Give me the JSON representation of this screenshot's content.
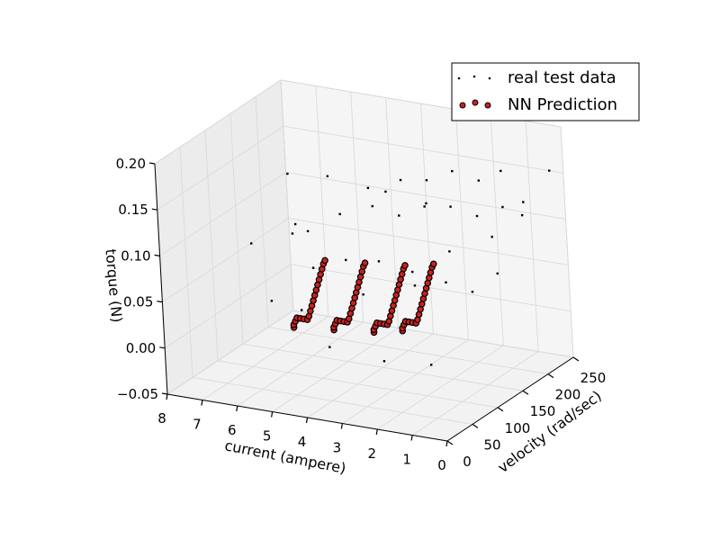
{
  "chart_data": {
    "type": "scatter",
    "projection": "3d",
    "title": "",
    "xlabel": "current (ampere)",
    "ylabel": "velocity (rad/sec)",
    "zlabel": "torque (N)",
    "xlim": [
      0,
      8
    ],
    "ylim": [
      0,
      250
    ],
    "zlim": [
      -0.05,
      0.2
    ],
    "x_ticks": [
      "8",
      "7",
      "6",
      "5",
      "4",
      "3",
      "2",
      "1",
      "0"
    ],
    "y_ticks": [
      "0",
      "50",
      "100",
      "150",
      "200",
      "250"
    ],
    "z_ticks": [
      "0.20",
      "0.15",
      "0.10",
      "0.05",
      "0.00",
      "−0.05"
    ],
    "grid": true,
    "legend_position": "top-right",
    "series": [
      {
        "name": "real test data",
        "color": "#000000",
        "marker": "point",
        "points": [
          [
            6.2,
            90,
            0.03
          ],
          [
            5.2,
            80,
            0.03
          ],
          [
            4.0,
            120,
            0.04
          ],
          [
            2.8,
            140,
            0.05
          ],
          [
            2.2,
            170,
            0.08
          ],
          [
            1.4,
            200,
            0.09
          ],
          [
            0.9,
            230,
            0.12
          ],
          [
            0.4,
            250,
            0.15
          ],
          [
            7.0,
            110,
            0.08
          ],
          [
            6.0,
            130,
            0.1
          ],
          [
            5.0,
            150,
            0.11
          ],
          [
            4.2,
            160,
            0.12
          ],
          [
            3.6,
            170,
            0.11
          ],
          [
            3.0,
            180,
            0.12
          ],
          [
            2.4,
            190,
            0.12
          ],
          [
            1.8,
            200,
            0.11
          ],
          [
            1.2,
            210,
            0.12
          ],
          [
            0.8,
            220,
            0.11
          ],
          [
            6.6,
            160,
            0.14
          ],
          [
            5.6,
            170,
            0.14
          ],
          [
            4.6,
            180,
            0.13
          ],
          [
            3.8,
            190,
            0.14
          ],
          [
            3.2,
            200,
            0.14
          ],
          [
            2.6,
            210,
            0.15
          ],
          [
            2.0,
            220,
            0.14
          ],
          [
            1.5,
            230,
            0.15
          ],
          [
            5.4,
            120,
            0.06
          ],
          [
            4.6,
            130,
            0.07
          ],
          [
            3.8,
            140,
            0.07
          ],
          [
            3.0,
            150,
            0.06
          ],
          [
            2.2,
            160,
            0.05
          ],
          [
            1.6,
            170,
            0.04
          ],
          [
            4.6,
            90,
            -0.01
          ],
          [
            3.2,
            100,
            -0.02
          ],
          [
            2.0,
            110,
            -0.02
          ],
          [
            6.4,
            150,
            0.08
          ],
          [
            5.8,
            140,
            0.09
          ],
          [
            1.0,
            180,
            0.06
          ],
          [
            4.4,
            200,
            0.12
          ],
          [
            3.4,
            210,
            0.11
          ]
        ]
      },
      {
        "name": "NN Prediction",
        "color": "#cc2020",
        "marker": "circle",
        "points": [
          [
            5.6,
            90,
            0.005
          ],
          [
            5.6,
            90,
            0.008
          ],
          [
            5.55,
            90,
            0.012
          ],
          [
            5.5,
            90,
            0.016
          ],
          [
            5.4,
            90,
            0.016
          ],
          [
            5.3,
            90,
            0.016
          ],
          [
            5.2,
            90,
            0.016
          ],
          [
            5.15,
            90,
            0.02
          ],
          [
            5.1,
            90,
            0.026
          ],
          [
            5.05,
            90,
            0.032
          ],
          [
            5.0,
            90,
            0.038
          ],
          [
            4.95,
            90,
            0.044
          ],
          [
            4.9,
            90,
            0.05
          ],
          [
            4.85,
            90,
            0.056
          ],
          [
            4.8,
            90,
            0.062
          ],
          [
            4.75,
            90,
            0.068
          ],
          [
            4.7,
            90,
            0.074
          ],
          [
            4.65,
            90,
            0.08
          ],
          [
            4.6,
            90,
            0.084
          ],
          [
            4.6,
            100,
            0.005
          ],
          [
            4.6,
            100,
            0.008
          ],
          [
            4.55,
            100,
            0.012
          ],
          [
            4.5,
            100,
            0.016
          ],
          [
            4.4,
            100,
            0.016
          ],
          [
            4.3,
            100,
            0.016
          ],
          [
            4.2,
            100,
            0.016
          ],
          [
            4.15,
            100,
            0.02
          ],
          [
            4.1,
            100,
            0.026
          ],
          [
            4.05,
            100,
            0.032
          ],
          [
            4.0,
            100,
            0.038
          ],
          [
            3.95,
            100,
            0.044
          ],
          [
            3.9,
            100,
            0.05
          ],
          [
            3.85,
            100,
            0.056
          ],
          [
            3.8,
            100,
            0.062
          ],
          [
            3.75,
            100,
            0.068
          ],
          [
            3.7,
            100,
            0.074
          ],
          [
            3.65,
            100,
            0.08
          ],
          [
            3.6,
            100,
            0.084
          ],
          [
            3.6,
            110,
            0.005
          ],
          [
            3.6,
            110,
            0.008
          ],
          [
            3.55,
            110,
            0.012
          ],
          [
            3.5,
            110,
            0.016
          ],
          [
            3.4,
            110,
            0.016
          ],
          [
            3.3,
            110,
            0.016
          ],
          [
            3.2,
            110,
            0.016
          ],
          [
            3.15,
            110,
            0.02
          ],
          [
            3.1,
            110,
            0.026
          ],
          [
            3.05,
            110,
            0.032
          ],
          [
            3.0,
            110,
            0.038
          ],
          [
            2.95,
            110,
            0.044
          ],
          [
            2.9,
            110,
            0.05
          ],
          [
            2.85,
            110,
            0.056
          ],
          [
            2.8,
            110,
            0.062
          ],
          [
            2.75,
            110,
            0.068
          ],
          [
            2.7,
            110,
            0.074
          ],
          [
            2.65,
            110,
            0.08
          ],
          [
            2.6,
            110,
            0.084
          ],
          [
            3.0,
            125,
            0.005
          ],
          [
            3.0,
            125,
            0.008
          ],
          [
            2.95,
            125,
            0.012
          ],
          [
            2.9,
            125,
            0.016
          ],
          [
            2.8,
            125,
            0.016
          ],
          [
            2.7,
            125,
            0.016
          ],
          [
            2.6,
            125,
            0.016
          ],
          [
            2.55,
            125,
            0.02
          ],
          [
            2.5,
            125,
            0.026
          ],
          [
            2.45,
            125,
            0.032
          ],
          [
            2.4,
            125,
            0.038
          ],
          [
            2.35,
            125,
            0.044
          ],
          [
            2.3,
            125,
            0.05
          ],
          [
            2.25,
            125,
            0.056
          ],
          [
            2.2,
            125,
            0.062
          ],
          [
            2.15,
            125,
            0.068
          ],
          [
            2.1,
            125,
            0.074
          ],
          [
            2.05,
            125,
            0.08
          ],
          [
            2.0,
            125,
            0.084
          ]
        ]
      }
    ]
  }
}
